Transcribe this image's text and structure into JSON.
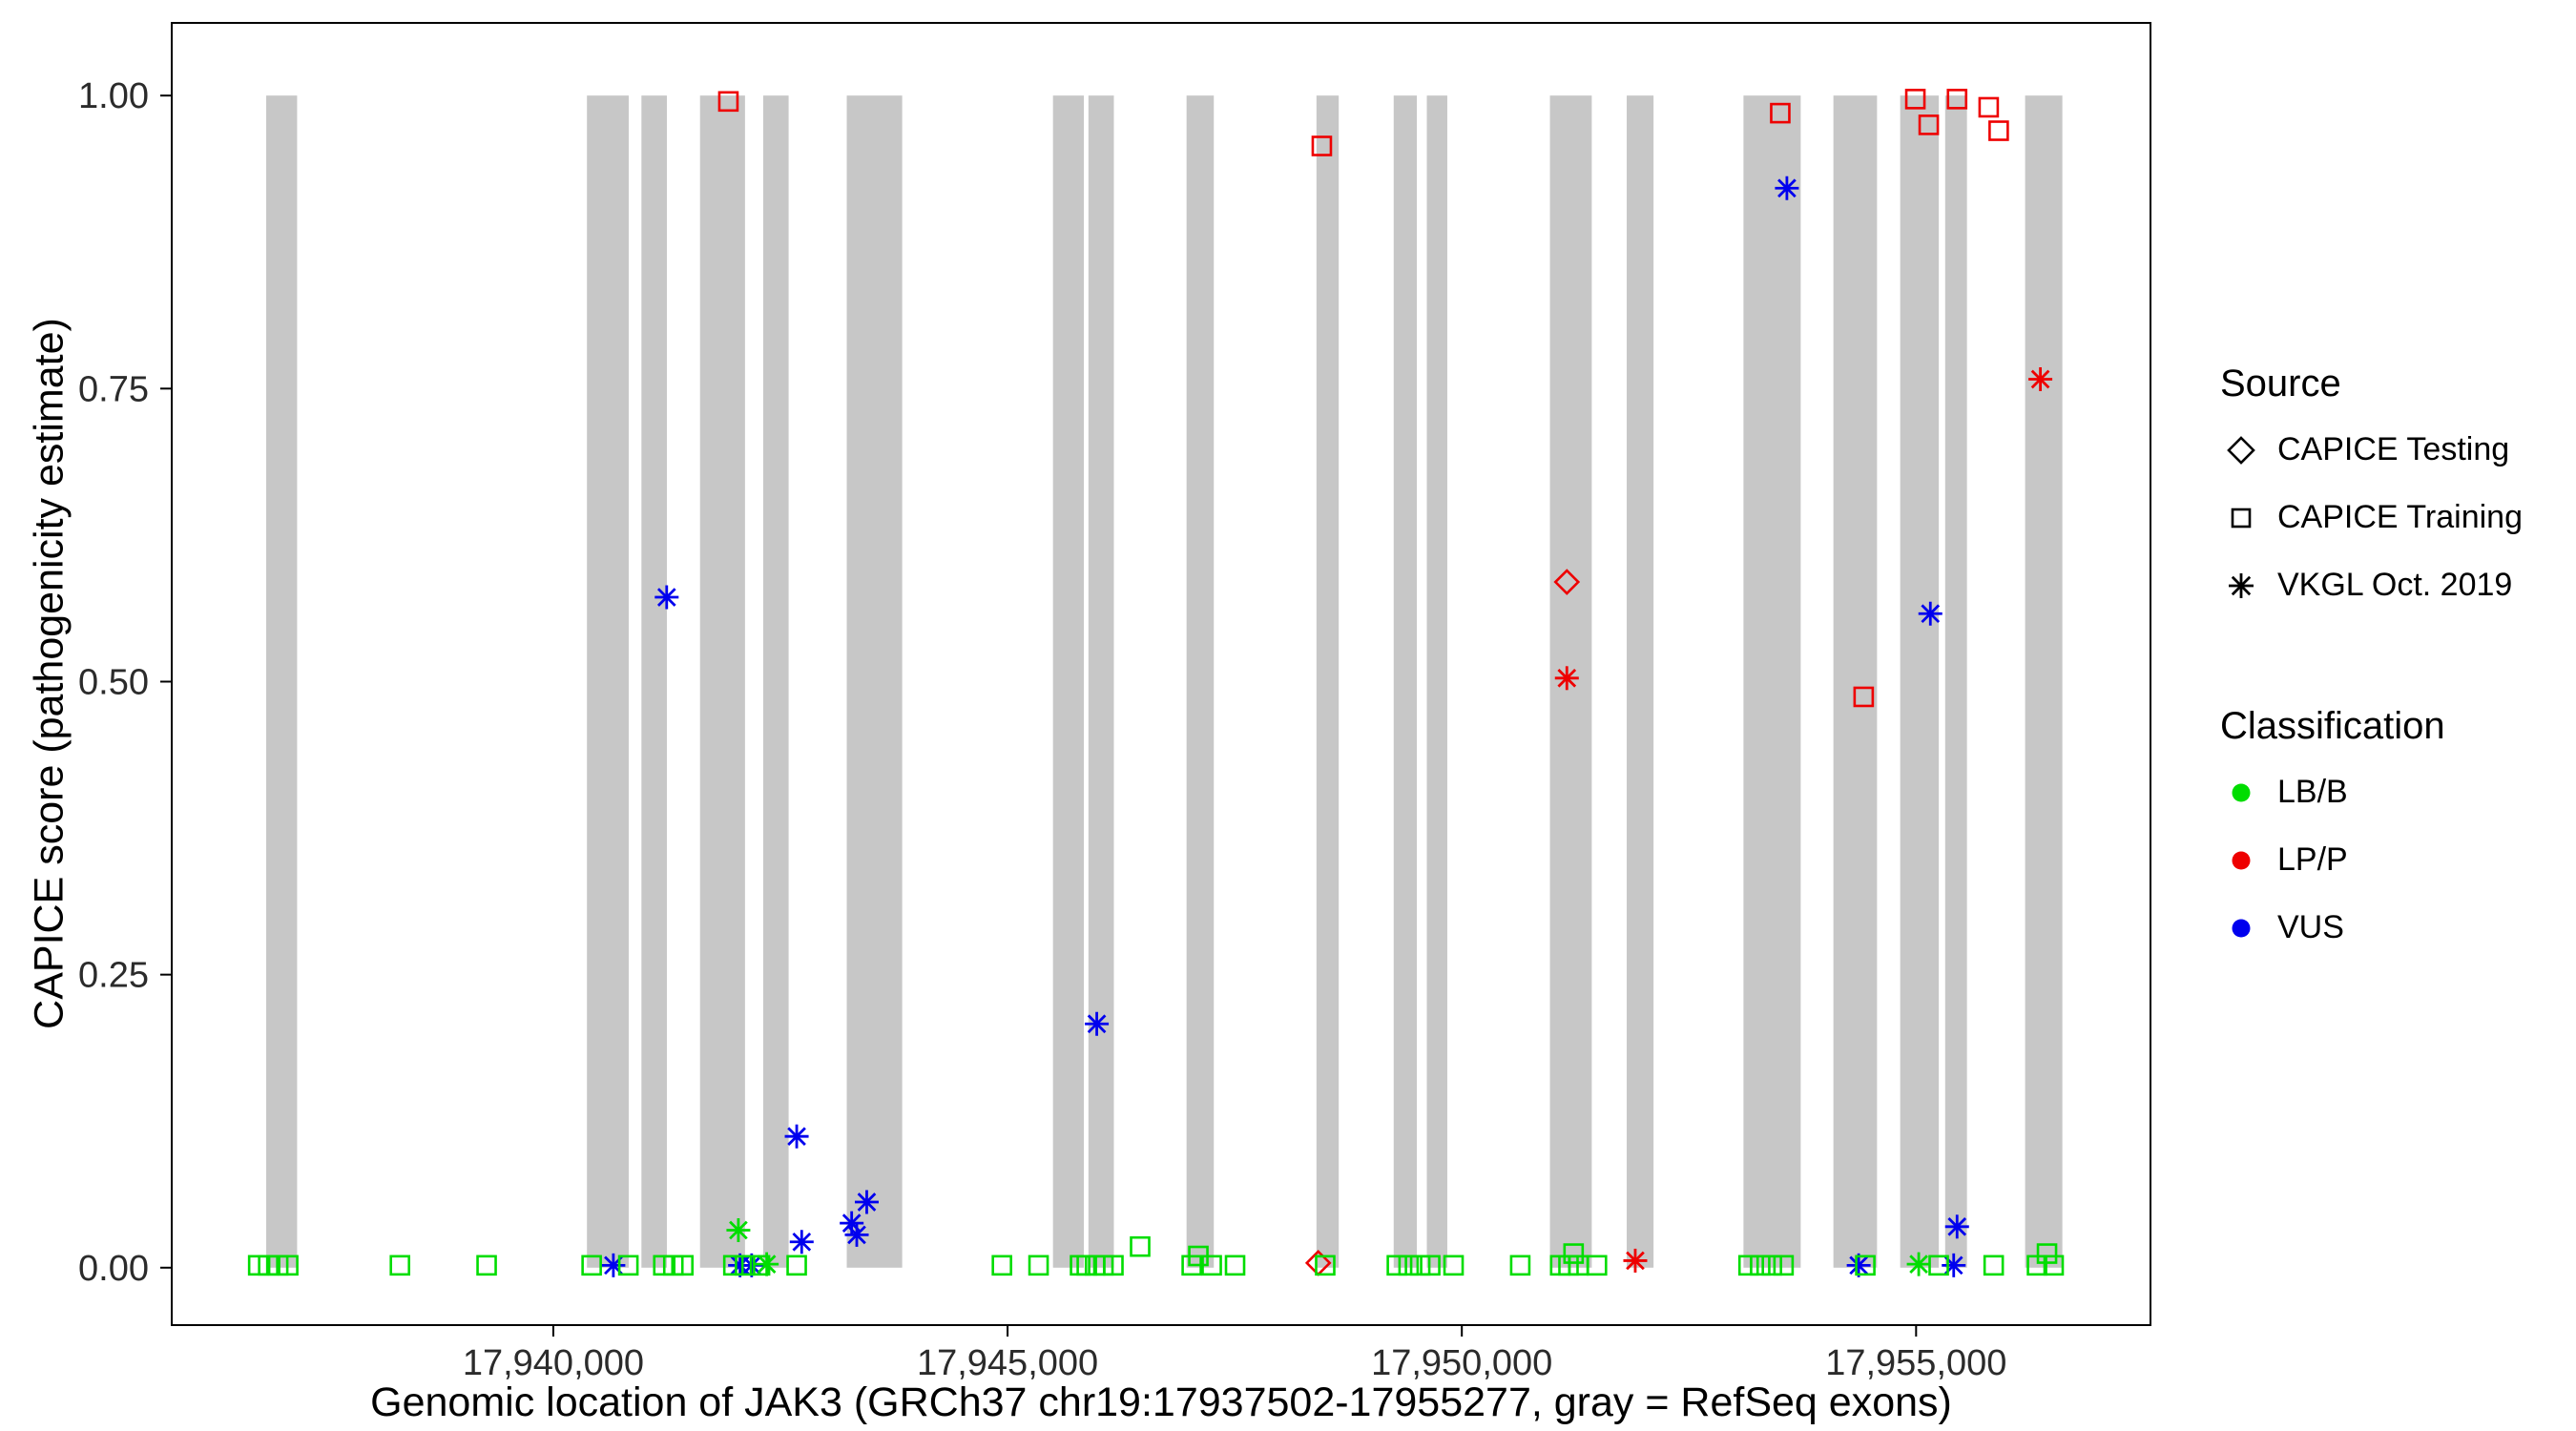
{
  "chart_data": {
    "type": "scatter",
    "title": "",
    "xlabel": "Genomic location of JAK3 (GRCh37 chr19:17937502-17955277, gray = RefSeq exons)",
    "ylabel": "CAPICE score (pathogenicity estimate)",
    "x_domain": [
      17935800,
      17957580
    ],
    "y_domain": [
      -0.049,
      1.062
    ],
    "x_ticks": [
      {
        "value": 17940000,
        "label": "17,940,000"
      },
      {
        "value": 17945000,
        "label": "17,945,000"
      },
      {
        "value": 17950000,
        "label": "17,950,000"
      },
      {
        "value": 17955000,
        "label": "17,955,000"
      }
    ],
    "y_ticks": [
      {
        "value": 0.0,
        "label": "0.00"
      },
      {
        "value": 0.25,
        "label": "0.25"
      },
      {
        "value": 0.5,
        "label": "0.50"
      },
      {
        "value": 0.75,
        "label": "0.75"
      },
      {
        "value": 1.0,
        "label": "1.00"
      }
    ],
    "grid": false,
    "legend_position": "right",
    "exon_color": "#C7C7C7",
    "panel_border_color": "#000000",
    "colors": {
      "LB/B": "#00DD00",
      "LP/P": "#EE0000",
      "VUS": "#0000EE"
    },
    "shapes_legend": {
      "sq": "CAPICE Training",
      "di": "CAPICE Testing",
      "as": "VKGL Oct. 2019"
    },
    "exons": [
      [
        17936840,
        17937180
      ],
      [
        17940370,
        17940830
      ],
      [
        17940970,
        17941250
      ],
      [
        17941615,
        17942110
      ],
      [
        17942310,
        17942590
      ],
      [
        17943230,
        17943840
      ],
      [
        17945500,
        17945840
      ],
      [
        17945890,
        17946170
      ],
      [
        17946970,
        17947270
      ],
      [
        17948400,
        17948645
      ],
      [
        17949250,
        17949505
      ],
      [
        17949615,
        17949840
      ],
      [
        17950970,
        17951430
      ],
      [
        17951815,
        17952110
      ],
      [
        17953100,
        17953730
      ],
      [
        17954090,
        17954570
      ],
      [
        17954825,
        17955250
      ],
      [
        17955320,
        17955560
      ],
      [
        17956200,
        17956610
      ]
    ],
    "points_format": [
      "genomic_position",
      "capice_score",
      "shape(sq=square,di=diamond,as=asterisk)",
      "classification"
    ],
    "points": [
      [
        17941927,
        0.995,
        "sq",
        "LP/P"
      ],
      [
        17948459,
        0.957,
        "sq",
        "LP/P"
      ],
      [
        17953505,
        0.985,
        "sq",
        "LP/P"
      ],
      [
        17954992,
        0.997,
        "sq",
        "LP/P"
      ],
      [
        17955139,
        0.975,
        "sq",
        "LP/P"
      ],
      [
        17955451,
        0.997,
        "sq",
        "LP/P"
      ],
      [
        17955799,
        0.99,
        "sq",
        "LP/P"
      ],
      [
        17955909,
        0.97,
        "sq",
        "LP/P"
      ],
      [
        17954423,
        0.487,
        "sq",
        "LP/P"
      ],
      [
        17951156,
        0.585,
        "di",
        "LP/P"
      ],
      [
        17948420,
        0.004,
        "di",
        "LP/P"
      ],
      [
        17956368,
        0.758,
        "as",
        "LP/P"
      ],
      [
        17951156,
        0.503,
        "as",
        "LP/P"
      ],
      [
        17951909,
        0.006,
        "as",
        "LP/P"
      ],
      [
        17941248,
        0.572,
        "as",
        "VUS"
      ],
      [
        17953578,
        0.921,
        "as",
        "VUS"
      ],
      [
        17955157,
        0.558,
        "as",
        "VUS"
      ],
      [
        17945982,
        0.208,
        "as",
        "VUS"
      ],
      [
        17942679,
        0.112,
        "as",
        "VUS"
      ],
      [
        17943284,
        0.038,
        "as",
        "VUS"
      ],
      [
        17943340,
        0.028,
        "as",
        "VUS"
      ],
      [
        17943450,
        0.056,
        "as",
        "VUS"
      ],
      [
        17942734,
        0.022,
        "as",
        "VUS"
      ],
      [
        17955451,
        0.035,
        "as",
        "VUS"
      ],
      [
        17940661,
        0.002,
        "as",
        "VUS"
      ],
      [
        17942055,
        0.002,
        "as",
        "VUS"
      ],
      [
        17942183,
        0.002,
        "as",
        "VUS"
      ],
      [
        17954368,
        0.002,
        "as",
        "VUS"
      ],
      [
        17955414,
        0.002,
        "as",
        "VUS"
      ],
      [
        17942037,
        0.032,
        "as",
        "LB/B"
      ],
      [
        17942349,
        0.003,
        "as",
        "LB/B"
      ],
      [
        17955029,
        0.003,
        "as",
        "LB/B"
      ],
      [
        17936752,
        0.002,
        "sq",
        "LB/B"
      ],
      [
        17936862,
        0.002,
        "sq",
        "LB/B"
      ],
      [
        17936972,
        0.002,
        "sq",
        "LB/B"
      ],
      [
        17937082,
        0.002,
        "sq",
        "LB/B"
      ],
      [
        17938312,
        0.002,
        "sq",
        "LB/B"
      ],
      [
        17939266,
        0.002,
        "sq",
        "LB/B"
      ],
      [
        17940422,
        0.002,
        "sq",
        "LB/B"
      ],
      [
        17940826,
        0.002,
        "sq",
        "LB/B"
      ],
      [
        17941211,
        0.002,
        "sq",
        "LB/B"
      ],
      [
        17941321,
        0.002,
        "sq",
        "LB/B"
      ],
      [
        17941431,
        0.002,
        "sq",
        "LB/B"
      ],
      [
        17941982,
        0.002,
        "sq",
        "LB/B"
      ],
      [
        17942110,
        0.002,
        "sq",
        "LB/B"
      ],
      [
        17942275,
        0.002,
        "sq",
        "LB/B"
      ],
      [
        17942679,
        0.002,
        "sq",
        "LB/B"
      ],
      [
        17944938,
        0.002,
        "sq",
        "LB/B"
      ],
      [
        17945341,
        0.002,
        "sq",
        "LB/B"
      ],
      [
        17945798,
        0.002,
        "sq",
        "LB/B"
      ],
      [
        17945872,
        0.002,
        "sq",
        "LB/B"
      ],
      [
        17945963,
        0.002,
        "sq",
        "LB/B"
      ],
      [
        17946055,
        0.002,
        "sq",
        "LB/B"
      ],
      [
        17946165,
        0.002,
        "sq",
        "LB/B"
      ],
      [
        17946459,
        0.018,
        "sq",
        "LB/B"
      ],
      [
        17947027,
        0.002,
        "sq",
        "LB/B"
      ],
      [
        17947100,
        0.01,
        "sq",
        "LB/B"
      ],
      [
        17947247,
        0.002,
        "sq",
        "LB/B"
      ],
      [
        17947504,
        0.002,
        "sq",
        "LB/B"
      ],
      [
        17948496,
        0.002,
        "sq",
        "LB/B"
      ],
      [
        17949285,
        0.002,
        "sq",
        "LB/B"
      ],
      [
        17949414,
        0.002,
        "sq",
        "LB/B"
      ],
      [
        17949542,
        0.002,
        "sq",
        "LB/B"
      ],
      [
        17949652,
        0.002,
        "sq",
        "LB/B"
      ],
      [
        17949909,
        0.002,
        "sq",
        "LB/B"
      ],
      [
        17950643,
        0.002,
        "sq",
        "LB/B"
      ],
      [
        17951083,
        0.002,
        "sq",
        "LB/B"
      ],
      [
        17951174,
        0.002,
        "sq",
        "LB/B"
      ],
      [
        17951230,
        0.012,
        "sq",
        "LB/B"
      ],
      [
        17951285,
        0.002,
        "sq",
        "LB/B"
      ],
      [
        17951487,
        0.002,
        "sq",
        "LB/B"
      ],
      [
        17953156,
        0.002,
        "sq",
        "LB/B"
      ],
      [
        17953284,
        0.002,
        "sq",
        "LB/B"
      ],
      [
        17953413,
        0.002,
        "sq",
        "LB/B"
      ],
      [
        17953541,
        0.002,
        "sq",
        "LB/B"
      ],
      [
        17954441,
        0.002,
        "sq",
        "LB/B"
      ],
      [
        17955249,
        0.002,
        "sq",
        "LB/B"
      ],
      [
        17955854,
        0.002,
        "sq",
        "LB/B"
      ],
      [
        17956331,
        0.002,
        "sq",
        "LB/B"
      ],
      [
        17956441,
        0.012,
        "sq",
        "LB/B"
      ],
      [
        17956514,
        0.002,
        "sq",
        "LB/B"
      ]
    ]
  },
  "legend": {
    "source": {
      "title": "Source",
      "items": [
        {
          "label": "CAPICE Testing",
          "shape": "diamond"
        },
        {
          "label": "CAPICE Training",
          "shape": "square"
        },
        {
          "label": "VKGL Oct. 2019",
          "shape": "asterisk"
        }
      ]
    },
    "classification": {
      "title": "Classification",
      "items": [
        {
          "label": "LB/B",
          "color": "#00DD00"
        },
        {
          "label": "LP/P",
          "color": "#EE0000"
        },
        {
          "label": "VUS",
          "color": "#0000EE"
        }
      ]
    }
  }
}
